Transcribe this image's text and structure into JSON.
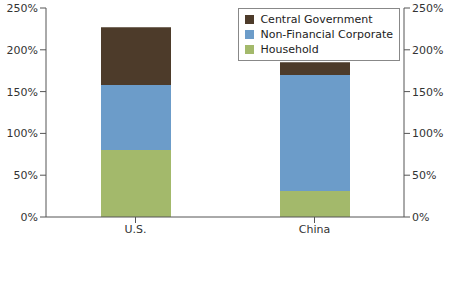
{
  "chart_data": {
    "type": "bar",
    "stacked": true,
    "categories": [
      "U.S.",
      "China"
    ],
    "series": [
      {
        "name": "Household",
        "color": "#a3b96b",
        "values": [
          80,
          31
        ]
      },
      {
        "name": "Non-Financial Corporate",
        "color": "#6c9cc9",
        "values": [
          78,
          139
        ]
      },
      {
        "name": "Central Government",
        "color": "#4d3b2a",
        "values": [
          69,
          15
        ]
      }
    ],
    "ylim": [
      0,
      250
    ],
    "yticks": [
      {
        "value": 0,
        "label": "0%"
      },
      {
        "value": 50,
        "label": "50%"
      },
      {
        "value": 100,
        "label": "100%"
      },
      {
        "value": 150,
        "label": "150%"
      },
      {
        "value": 200,
        "label": "200%"
      },
      {
        "value": 250,
        "label": "250%"
      }
    ],
    "y2lim": [
      0,
      250
    ],
    "y2ticks": [
      {
        "value": 0,
        "label": "0%"
      },
      {
        "value": 50,
        "label": "50%"
      },
      {
        "value": 100,
        "label": "100%"
      },
      {
        "value": 150,
        "label": "150%"
      },
      {
        "value": 200,
        "label": "200%"
      },
      {
        "value": 250,
        "label": "250%"
      }
    ],
    "legend": "top-right",
    "grid": false
  }
}
